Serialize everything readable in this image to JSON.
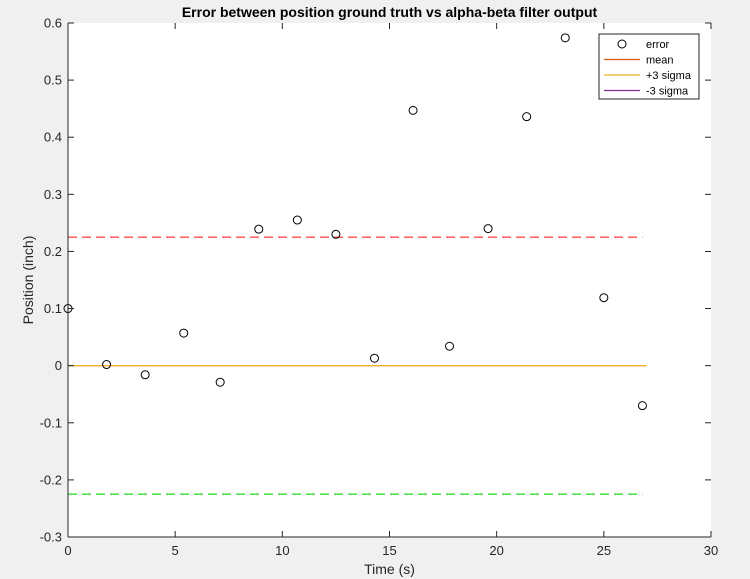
{
  "chart_data": {
    "type": "scatter",
    "title": "Error between position ground truth vs alpha-beta filter output",
    "xlabel": "Time (s)",
    "ylabel": "Position (inch)",
    "xlim": [
      0,
      30
    ],
    "ylim": [
      -0.3,
      0.6
    ],
    "xticks": [
      0,
      5,
      10,
      15,
      20,
      25,
      30
    ],
    "yticks": [
      -0.3,
      -0.2,
      -0.1,
      0,
      0.1,
      0.2,
      0.3,
      0.4,
      0.5,
      0.6
    ],
    "grid": false,
    "legend_position": "top-right",
    "error_points": [
      {
        "x": 0.0,
        "y": 0.1
      },
      {
        "x": 1.8,
        "y": 0.002
      },
      {
        "x": 3.6,
        "y": -0.016
      },
      {
        "x": 5.4,
        "y": 0.057
      },
      {
        "x": 7.1,
        "y": -0.029
      },
      {
        "x": 8.9,
        "y": 0.239
      },
      {
        "x": 10.7,
        "y": 0.255
      },
      {
        "x": 12.5,
        "y": 0.23
      },
      {
        "x": 14.3,
        "y": 0.013
      },
      {
        "x": 16.1,
        "y": 0.447
      },
      {
        "x": 17.8,
        "y": 0.034
      },
      {
        "x": 19.6,
        "y": 0.24
      },
      {
        "x": 21.4,
        "y": 0.436
      },
      {
        "x": 23.2,
        "y": 0.574
      },
      {
        "x": 25.0,
        "y": 0.119
      },
      {
        "x": 26.8,
        "y": -0.07
      }
    ],
    "lines": [
      {
        "name": "mean",
        "y": 0.0,
        "x_range": [
          0,
          27.0
        ],
        "color": "#edb120",
        "style": "solid"
      },
      {
        "name": "+3 sigma",
        "y": 0.225,
        "x_range": [
          0,
          26.8
        ],
        "color": "#ff4d4d",
        "style": "dashed"
      },
      {
        "name": "-3 sigma",
        "y": -0.225,
        "x_range": [
          0,
          26.8
        ],
        "color": "#33dd33",
        "style": "dashed"
      }
    ],
    "legend": [
      {
        "label": "error",
        "marker": "circle",
        "color": "#000000"
      },
      {
        "label": "mean",
        "marker": "line",
        "color": "#d95319"
      },
      {
        "label": "+3 sigma",
        "marker": "line",
        "color": "#edb120"
      },
      {
        "label": "-3 sigma",
        "marker": "line",
        "color": "#7e2f8e"
      }
    ]
  }
}
